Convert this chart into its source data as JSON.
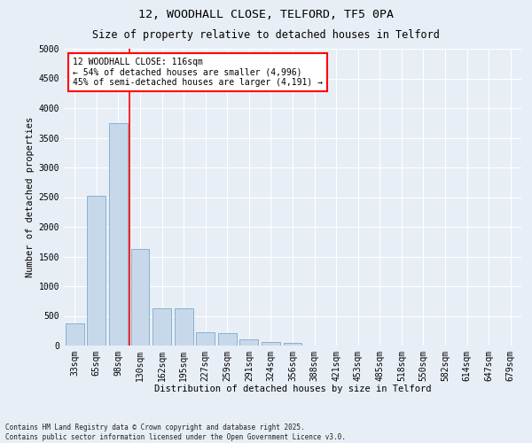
{
  "title1": "12, WOODHALL CLOSE, TELFORD, TF5 0PA",
  "title2": "Size of property relative to detached houses in Telford",
  "xlabel": "Distribution of detached houses by size in Telford",
  "ylabel": "Number of detached properties",
  "categories": [
    "33sqm",
    "65sqm",
    "98sqm",
    "130sqm",
    "162sqm",
    "195sqm",
    "227sqm",
    "259sqm",
    "291sqm",
    "324sqm",
    "356sqm",
    "388sqm",
    "421sqm",
    "453sqm",
    "485sqm",
    "518sqm",
    "550sqm",
    "582sqm",
    "614sqm",
    "647sqm",
    "679sqm"
  ],
  "values": [
    370,
    2520,
    3750,
    1620,
    620,
    620,
    220,
    210,
    110,
    65,
    50,
    0,
    0,
    0,
    0,
    0,
    0,
    0,
    0,
    0,
    0
  ],
  "bar_color": "#c8d8eb",
  "bar_edge_color": "#7aaac8",
  "vline_color": "red",
  "vline_pos": 2.5,
  "annotation_text": "12 WOODHALL CLOSE: 116sqm\n← 54% of detached houses are smaller (4,996)\n45% of semi-detached houses are larger (4,191) →",
  "annotation_box_color": "white",
  "annotation_box_edge": "red",
  "ylim": [
    0,
    5000
  ],
  "yticks": [
    0,
    500,
    1000,
    1500,
    2000,
    2500,
    3000,
    3500,
    4000,
    4500,
    5000
  ],
  "footer1": "Contains HM Land Registry data © Crown copyright and database right 2025.",
  "footer2": "Contains public sector information licensed under the Open Government Licence v3.0.",
  "bg_color": "#e8eef6",
  "plot_bg_color": "#e8eef6",
  "grid_color": "#ffffff",
  "title1_fontsize": 9.5,
  "title2_fontsize": 8.5,
  "tick_fontsize": 7,
  "label_fontsize": 7.5,
  "annot_fontsize": 7,
  "footer_fontsize": 5.5
}
